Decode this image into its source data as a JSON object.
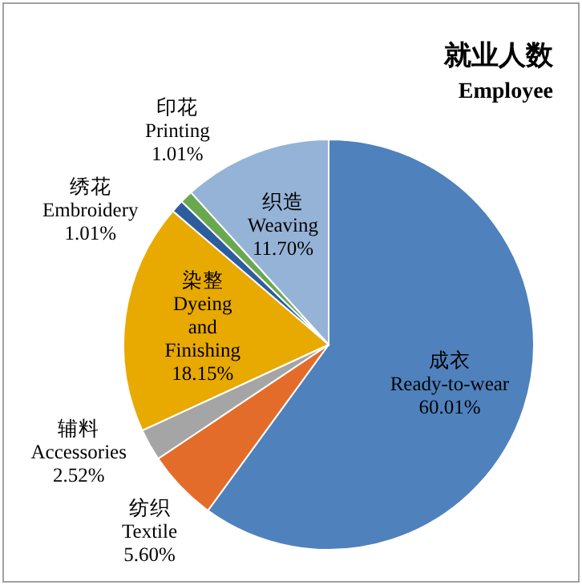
{
  "chart_data": {
    "type": "pie",
    "title": "就业人数",
    "subtitle": "Employee",
    "categories": [
      "成衣 Ready-to-wear",
      "纺织 Textile",
      "辅料 Accessories",
      "染整 Dyeing and Finishing",
      "绣花 Embroidery",
      "印花 Printing",
      "织造 Weaving"
    ],
    "values": [
      60.01,
      5.6,
      2.52,
      18.15,
      1.01,
      1.01,
      11.7
    ],
    "colors": [
      "#4f81bd",
      "#e46c2a",
      "#a5a5a5",
      "#e8a900",
      "#2e5d9e",
      "#6aa84f",
      "#95b3d7"
    ],
    "value_labels": [
      "60.01%",
      "5.60%",
      "2.52%",
      "18.15%",
      "1.01%",
      "1.01%",
      "11.70%"
    ]
  }
}
